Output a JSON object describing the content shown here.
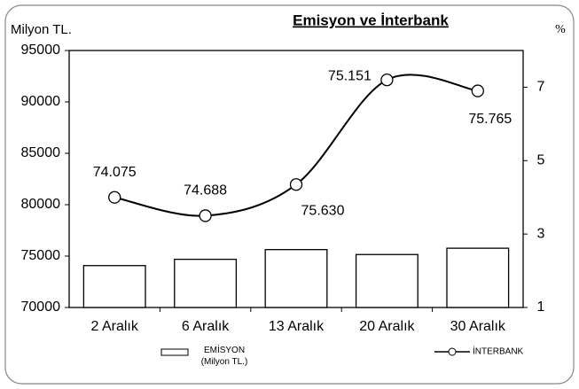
{
  "chart_data": {
    "type": "bar+line",
    "title": "Emisyon ve İnterbank",
    "y_label": "Milyon TL.",
    "y2_label": "%",
    "categories": [
      "2 Aralık",
      "6 Aralık",
      "13 Aralık",
      "20 Aralık",
      "30 Aralık"
    ],
    "series": [
      {
        "name": "EMİSYON (Milyon TL.)",
        "type": "bar",
        "color": "#ffffff",
        "values": [
          74075,
          74688,
          75630,
          75151,
          75765
        ],
        "value_labels": [
          "74.075",
          "74.688",
          "75.630",
          "75.151",
          "75.765"
        ]
      },
      {
        "name": "İNTERBANK",
        "type": "line",
        "axis": "y2",
        "color": "#000000",
        "values": [
          4.0,
          3.5,
          4.35,
          7.2,
          6.9
        ]
      }
    ],
    "ylim": [
      70000,
      95000
    ],
    "yticks": [
      70000,
      75000,
      80000,
      85000,
      90000,
      95000
    ],
    "y2lim": [
      1,
      8
    ],
    "y2ticks": [
      1,
      3,
      5,
      7
    ]
  }
}
